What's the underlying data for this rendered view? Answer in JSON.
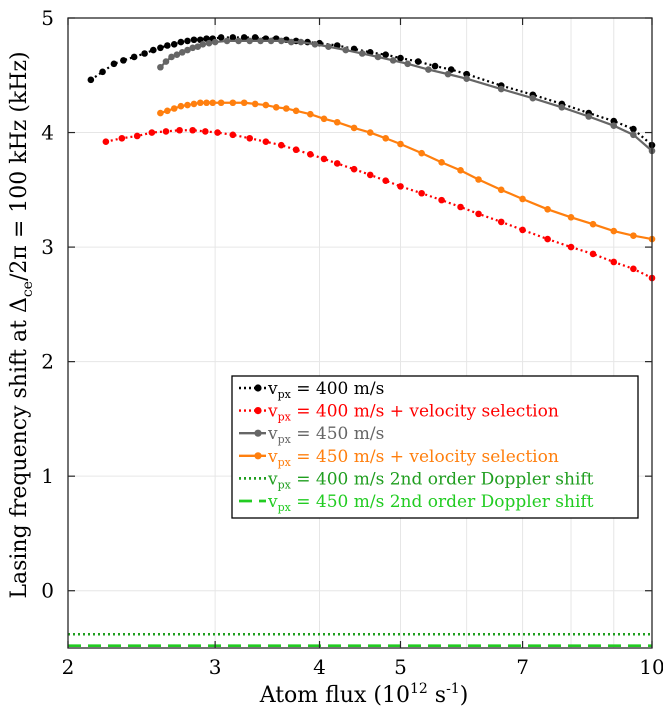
{
  "chart_data": {
    "type": "line",
    "xscale": "log",
    "xlim": [
      2,
      10
    ],
    "ylim": [
      -0.5,
      5
    ],
    "x_ticks": [
      2,
      3,
      4,
      5,
      7,
      10
    ],
    "x_tick_labels": [
      "2",
      "3",
      "4",
      "5",
      "7",
      "10"
    ],
    "y_ticks": [
      0,
      1,
      2,
      3,
      4,
      5
    ],
    "y_tick_labels": [
      "0",
      "1",
      "2",
      "3",
      "4",
      "5"
    ],
    "grid": true,
    "legend_position": "lower-right",
    "xlabel": {
      "main": "Atom flux (10",
      "sup": "12",
      "tail": " s",
      "sup2": "-1",
      "end": ")"
    },
    "ylabel": {
      "main": "Lasing frequency shift at  Δ",
      "sub": "ce",
      "tail": "/2π = 100 kHz (kHz)"
    },
    "series": [
      {
        "name": "400 m/s",
        "legend": {
          "v": "v",
          "sub": "px",
          "rest": " = 400 m/s"
        },
        "color": "#000000",
        "line": "dotted",
        "markers": true,
        "x": [
          2.13,
          2.2,
          2.27,
          2.33,
          2.4,
          2.47,
          2.53,
          2.58,
          2.63,
          2.68,
          2.73,
          2.78,
          2.83,
          2.88,
          2.93,
          2.98,
          3.05,
          3.15,
          3.25,
          3.35,
          3.45,
          3.55,
          3.65,
          3.75,
          3.87,
          4.0,
          4.2,
          4.4,
          4.6,
          4.8,
          5.0,
          5.25,
          5.5,
          5.75,
          6.0,
          6.6,
          7.2,
          7.8,
          8.4,
          9.0,
          9.5,
          10.0
        ],
        "y": [
          4.46,
          4.53,
          4.6,
          4.63,
          4.66,
          4.69,
          4.72,
          4.74,
          4.76,
          4.77,
          4.79,
          4.8,
          4.81,
          4.81,
          4.82,
          4.82,
          4.83,
          4.83,
          4.83,
          4.83,
          4.82,
          4.82,
          4.81,
          4.8,
          4.79,
          4.78,
          4.76,
          4.73,
          4.7,
          4.68,
          4.65,
          4.62,
          4.58,
          4.55,
          4.51,
          4.41,
          4.33,
          4.25,
          4.17,
          4.1,
          4.03,
          3.89
        ]
      },
      {
        "name": "400 m/s + velocity selection",
        "legend": {
          "v": "v",
          "sub": "px",
          "rest": " = 400 m/s + velocity selection"
        },
        "color": "#ff0000",
        "line": "dotted",
        "markers": true,
        "x": [
          2.22,
          2.32,
          2.42,
          2.52,
          2.62,
          2.72,
          2.82,
          2.92,
          3.02,
          3.15,
          3.3,
          3.45,
          3.6,
          3.75,
          3.9,
          4.05,
          4.2,
          4.4,
          4.6,
          4.8,
          5.0,
          5.3,
          5.6,
          5.9,
          6.2,
          6.6,
          7.0,
          7.5,
          8.0,
          8.5,
          9.0,
          9.5,
          10.0
        ],
        "y": [
          3.92,
          3.95,
          3.97,
          4.0,
          4.01,
          4.02,
          4.02,
          4.01,
          4.0,
          3.98,
          3.95,
          3.92,
          3.89,
          3.85,
          3.81,
          3.77,
          3.73,
          3.68,
          3.63,
          3.58,
          3.53,
          3.47,
          3.41,
          3.35,
          3.29,
          3.22,
          3.15,
          3.07,
          3.0,
          2.94,
          2.87,
          2.81,
          2.73
        ]
      },
      {
        "name": "450 m/s",
        "legend": {
          "v": "v",
          "sub": "px",
          "rest": " = 450 m/s"
        },
        "color": "#666666",
        "line": "solid",
        "markers": true,
        "x": [
          2.58,
          2.62,
          2.66,
          2.7,
          2.74,
          2.78,
          2.82,
          2.86,
          2.9,
          2.95,
          3.0,
          3.1,
          3.2,
          3.3,
          3.4,
          3.5,
          3.6,
          3.7,
          3.8,
          3.95,
          4.1,
          4.3,
          4.5,
          4.7,
          4.9,
          5.1,
          5.4,
          5.7,
          6.0,
          6.6,
          7.2,
          7.8,
          8.4,
          9.0,
          9.5,
          10.0
        ],
        "y": [
          4.57,
          4.62,
          4.66,
          4.68,
          4.7,
          4.72,
          4.74,
          4.75,
          4.77,
          4.78,
          4.79,
          4.8,
          4.8,
          4.8,
          4.8,
          4.8,
          4.8,
          4.79,
          4.79,
          4.77,
          4.75,
          4.72,
          4.69,
          4.66,
          4.63,
          4.6,
          4.55,
          4.51,
          4.47,
          4.38,
          4.3,
          4.22,
          4.14,
          4.06,
          3.98,
          3.84
        ]
      },
      {
        "name": "450 m/s + velocity selection",
        "legend": {
          "v": "v",
          "sub": "px",
          "rest": " = 450 m/s + velocity selection"
        },
        "color": "#ff7f0e",
        "line": "solid",
        "markers": true,
        "x": [
          2.58,
          2.63,
          2.68,
          2.73,
          2.78,
          2.83,
          2.88,
          2.93,
          2.98,
          3.05,
          3.15,
          3.25,
          3.35,
          3.45,
          3.55,
          3.65,
          3.75,
          3.9,
          4.05,
          4.2,
          4.4,
          4.6,
          4.8,
          5.0,
          5.3,
          5.6,
          5.9,
          6.2,
          6.6,
          7.0,
          7.5,
          8.0,
          8.5,
          9.0,
          9.5,
          10.0
        ],
        "y": [
          4.17,
          4.19,
          4.21,
          4.23,
          4.24,
          4.25,
          4.26,
          4.26,
          4.26,
          4.26,
          4.26,
          4.26,
          4.25,
          4.24,
          4.22,
          4.21,
          4.19,
          4.16,
          4.12,
          4.09,
          4.04,
          4.0,
          3.95,
          3.9,
          3.82,
          3.74,
          3.67,
          3.59,
          3.5,
          3.42,
          3.33,
          3.26,
          3.2,
          3.14,
          3.1,
          3.07
        ]
      },
      {
        "name": "400 m/s 2nd order Doppler shift",
        "legend": {
          "v": "v",
          "sub": "px",
          "rest": " = 400 m/s 2nd order Doppler shift"
        },
        "color": "#1f9e1f",
        "line": "dotted",
        "markers": false,
        "x": [
          2,
          10
        ],
        "y": [
          -0.38,
          -0.38
        ]
      },
      {
        "name": "450 m/s 2nd order Doppler shift",
        "legend": {
          "v": "v",
          "sub": "px",
          "rest": " = 450 m/s 2nd order Doppler shift"
        },
        "color": "#22cc22",
        "line": "dashed",
        "markers": false,
        "x": [
          2,
          10
        ],
        "y": [
          -0.48,
          -0.48
        ]
      }
    ]
  }
}
